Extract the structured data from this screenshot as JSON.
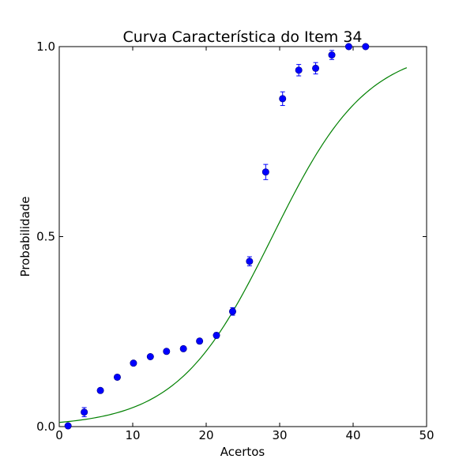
{
  "chart_data": {
    "type": "scatter",
    "title": "Curva Característica do Item 34",
    "xlabel": "Acertos",
    "ylabel": "Probabilidade",
    "xlim": [
      0,
      50
    ],
    "ylim": [
      0.0,
      1.0
    ],
    "xticks": [
      0,
      10,
      20,
      30,
      40,
      50
    ],
    "xtick_labels": [
      "0",
      "10",
      "20",
      "30",
      "40",
      "50"
    ],
    "yticks": [
      0.0,
      0.5,
      1.0
    ],
    "ytick_labels": [
      "0.0",
      "0.5",
      "1.0"
    ],
    "grid": false,
    "legend": "none",
    "series": [
      {
        "kind": "scatter-errorbar",
        "color": "#0000ff",
        "points": [
          {
            "x": 1.2,
            "y": 0.002,
            "err": 0.003
          },
          {
            "x": 3.4,
            "y": 0.038,
            "err": 0.012
          },
          {
            "x": 5.6,
            "y": 0.095,
            "err": 0.005
          },
          {
            "x": 7.9,
            "y": 0.13,
            "err": 0.005
          },
          {
            "x": 10.1,
            "y": 0.167,
            "err": 0.005
          },
          {
            "x": 12.4,
            "y": 0.184,
            "err": 0.005
          },
          {
            "x": 14.6,
            "y": 0.198,
            "err": 0.005
          },
          {
            "x": 16.9,
            "y": 0.205,
            "err": 0.005
          },
          {
            "x": 19.1,
            "y": 0.225,
            "err": 0.006
          },
          {
            "x": 21.4,
            "y": 0.24,
            "err": 0.007
          },
          {
            "x": 23.6,
            "y": 0.303,
            "err": 0.01
          },
          {
            "x": 25.9,
            "y": 0.435,
            "err": 0.012
          },
          {
            "x": 28.1,
            "y": 0.67,
            "err": 0.02
          },
          {
            "x": 30.4,
            "y": 0.863,
            "err": 0.018
          },
          {
            "x": 32.6,
            "y": 0.938,
            "err": 0.015
          },
          {
            "x": 34.9,
            "y": 0.943,
            "err": 0.015
          },
          {
            "x": 37.1,
            "y": 0.978,
            "err": 0.012
          },
          {
            "x": 39.4,
            "y": 1.0,
            "err": 0.005
          },
          {
            "x": 41.7,
            "y": 1.0,
            "err": 0.003
          }
        ]
      },
      {
        "kind": "line",
        "color": "#008000",
        "curve": {
          "model": "logistic",
          "a": 0.155,
          "b": 29.0,
          "c": 0.0
        },
        "x_range": [
          0,
          47.3
        ]
      }
    ]
  }
}
